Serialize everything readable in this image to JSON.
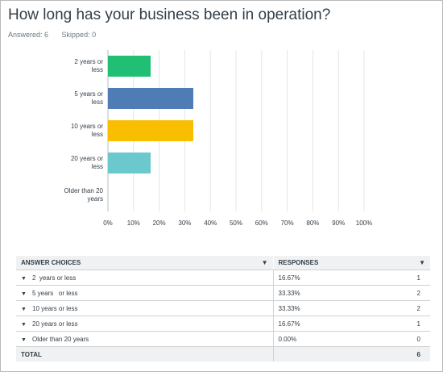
{
  "question": {
    "title": "How long has your business been in operation?",
    "answered": "Answered: 6",
    "skipped": "Skipped: 0"
  },
  "chart_data": {
    "type": "bar",
    "orientation": "horizontal",
    "categories": [
      [
        "2 years or",
        "less"
      ],
      [
        "5 years or",
        "less"
      ],
      [
        "10 years or",
        "less"
      ],
      [
        "20 years or",
        "less"
      ],
      [
        "Older than 20",
        "years"
      ]
    ],
    "values": [
      16.67,
      33.33,
      33.33,
      16.67,
      0
    ],
    "colors": [
      "#21bf73",
      "#507cb6",
      "#f9be00",
      "#6bc8cd",
      "#ff8b4f"
    ],
    "xlim": [
      0,
      100
    ],
    "xticks": [
      "0%",
      "10%",
      "20%",
      "30%",
      "40%",
      "50%",
      "60%",
      "70%",
      "80%",
      "90%",
      "100%"
    ],
    "grid": true
  },
  "table": {
    "headers": {
      "choices": "ANSWER CHOICES",
      "responses": "RESPONSES"
    },
    "rows": [
      {
        "choice": "2  years or less",
        "pct": "16.67%",
        "count": "1"
      },
      {
        "choice": "5 years   or less",
        "pct": "33.33%",
        "count": "2"
      },
      {
        "choice": "10 years or less",
        "pct": "33.33%",
        "count": "2"
      },
      {
        "choice": "20 years or less",
        "pct": "16.67%",
        "count": "1"
      },
      {
        "choice": "Older than 20 years",
        "pct": "0.00%",
        "count": "0"
      }
    ],
    "total_label": "TOTAL",
    "total_count": "6"
  }
}
